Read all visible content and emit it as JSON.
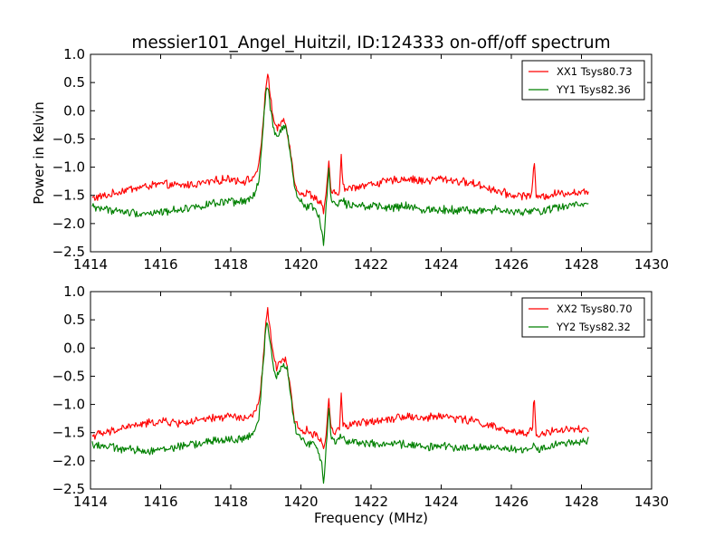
{
  "chart_data": [
    {
      "type": "line",
      "title": "messier101_Angel_Huitzil, ID:124333 on-off/off spectrum",
      "xlabel": "",
      "ylabel": "Power in Kelvin",
      "xlim": [
        1414,
        1430
      ],
      "ylim": [
        -2.5,
        1.0
      ],
      "xticks": [
        "1414",
        "1416",
        "1418",
        "1420",
        "1422",
        "1424",
        "1426",
        "1428",
        "1430"
      ],
      "yticks": [
        "1.0",
        "0.5",
        "0.0",
        "−0.5",
        "−1.0",
        "−1.5",
        "−2.0",
        "−2.5"
      ],
      "legend_position": "top-right",
      "grid": false,
      "x_range": [
        1414.05,
        1428.2
      ],
      "series": [
        {
          "name": "XX1 Tsys80.73",
          "color": "#ff0000",
          "x": [
            1414.05,
            1414.5,
            1415.0,
            1415.5,
            1416.0,
            1416.5,
            1417.0,
            1417.5,
            1418.0,
            1418.3,
            1418.6,
            1418.8,
            1418.9,
            1419.0,
            1419.05,
            1419.1,
            1419.2,
            1419.3,
            1419.4,
            1419.5,
            1419.6,
            1419.7,
            1419.8,
            1419.9,
            1420.0,
            1420.1,
            1420.2,
            1420.3,
            1420.4,
            1420.5,
            1420.6,
            1420.65,
            1420.7,
            1420.75,
            1420.8,
            1420.85,
            1420.9,
            1421.0,
            1421.1,
            1421.15,
            1421.2,
            1421.3,
            1421.5,
            1422.0,
            1422.5,
            1423.0,
            1423.5,
            1424.0,
            1424.5,
            1425.0,
            1425.5,
            1426.0,
            1426.5,
            1426.6,
            1426.65,
            1426.7,
            1426.8,
            1427.0,
            1427.5,
            1428.0,
            1428.2
          ],
          "y": [
            -1.55,
            -1.5,
            -1.4,
            -1.35,
            -1.3,
            -1.33,
            -1.3,
            -1.25,
            -1.2,
            -1.25,
            -1.22,
            -1.0,
            -0.4,
            0.45,
            0.67,
            0.4,
            -0.1,
            -0.35,
            -0.25,
            -0.15,
            -0.3,
            -0.7,
            -1.2,
            -1.4,
            -1.45,
            -1.5,
            -1.45,
            -1.5,
            -1.55,
            -1.6,
            -1.65,
            -1.8,
            -1.6,
            -1.3,
            -0.85,
            -1.4,
            -1.45,
            -1.5,
            -1.4,
            -0.8,
            -1.35,
            -1.4,
            -1.35,
            -1.3,
            -1.25,
            -1.2,
            -1.25,
            -1.2,
            -1.25,
            -1.3,
            -1.4,
            -1.5,
            -1.5,
            -1.45,
            -0.75,
            -1.5,
            -1.55,
            -1.5,
            -1.45,
            -1.45,
            -1.45
          ]
        },
        {
          "name": "YY1 Tsys82.36",
          "color": "#008000",
          "x": [
            1414.05,
            1414.5,
            1415.0,
            1415.5,
            1416.0,
            1416.5,
            1417.0,
            1417.5,
            1418.0,
            1418.3,
            1418.6,
            1418.8,
            1418.9,
            1419.0,
            1419.05,
            1419.1,
            1419.2,
            1419.3,
            1419.4,
            1419.5,
            1419.6,
            1419.7,
            1419.8,
            1419.9,
            1420.0,
            1420.1,
            1420.2,
            1420.3,
            1420.4,
            1420.5,
            1420.6,
            1420.65,
            1420.7,
            1420.75,
            1420.8,
            1420.85,
            1420.9,
            1421.0,
            1421.1,
            1421.15,
            1421.2,
            1421.3,
            1421.5,
            1422.0,
            1422.5,
            1423.0,
            1423.5,
            1424.0,
            1424.5,
            1425.0,
            1425.5,
            1426.0,
            1426.5,
            1426.6,
            1426.65,
            1426.7,
            1426.8,
            1427.0,
            1427.5,
            1428.0,
            1428.2
          ],
          "y": [
            -1.7,
            -1.75,
            -1.8,
            -1.82,
            -1.8,
            -1.75,
            -1.7,
            -1.65,
            -1.62,
            -1.62,
            -1.55,
            -1.3,
            -0.5,
            0.35,
            0.45,
            0.2,
            -0.25,
            -0.5,
            -0.4,
            -0.25,
            -0.35,
            -0.8,
            -1.3,
            -1.55,
            -1.6,
            -1.65,
            -1.7,
            -1.68,
            -1.75,
            -1.85,
            -2.1,
            -2.4,
            -1.9,
            -1.45,
            -1.0,
            -1.55,
            -1.6,
            -1.65,
            -1.6,
            -1.55,
            -1.6,
            -1.65,
            -1.65,
            -1.7,
            -1.72,
            -1.7,
            -1.75,
            -1.75,
            -1.75,
            -1.78,
            -1.75,
            -1.8,
            -1.8,
            -1.78,
            -1.75,
            -1.8,
            -1.78,
            -1.75,
            -1.7,
            -1.65,
            -1.62
          ]
        }
      ]
    },
    {
      "type": "line",
      "title": "",
      "xlabel": "Frequency (MHz)",
      "ylabel": "",
      "xlim": [
        1414,
        1430
      ],
      "ylim": [
        -2.5,
        1.0
      ],
      "xticks": [
        "1414",
        "1416",
        "1418",
        "1420",
        "1422",
        "1424",
        "1426",
        "1428",
        "1430"
      ],
      "yticks": [
        "1.0",
        "0.5",
        "0.0",
        "−0.5",
        "−1.0",
        "−1.5",
        "−2.0",
        "−2.5"
      ],
      "legend_position": "top-right",
      "grid": false,
      "x_range": [
        1414.05,
        1428.2
      ],
      "series": [
        {
          "name": "XX2 Tsys80.70",
          "color": "#ff0000",
          "x": [
            1414.05,
            1414.5,
            1415.0,
            1415.5,
            1416.0,
            1416.5,
            1417.0,
            1417.5,
            1418.0,
            1418.3,
            1418.6,
            1418.8,
            1418.9,
            1419.0,
            1419.05,
            1419.1,
            1419.2,
            1419.3,
            1419.4,
            1419.5,
            1419.6,
            1419.7,
            1419.8,
            1419.9,
            1420.0,
            1420.1,
            1420.2,
            1420.3,
            1420.4,
            1420.5,
            1420.6,
            1420.65,
            1420.7,
            1420.75,
            1420.8,
            1420.85,
            1420.9,
            1421.0,
            1421.1,
            1421.15,
            1421.2,
            1421.3,
            1421.5,
            1422.0,
            1422.5,
            1423.0,
            1423.5,
            1424.0,
            1424.5,
            1425.0,
            1425.5,
            1426.0,
            1426.5,
            1426.6,
            1426.65,
            1426.7,
            1426.8,
            1427.0,
            1427.5,
            1428.0,
            1428.2
          ],
          "y": [
            -1.55,
            -1.5,
            -1.4,
            -1.35,
            -1.3,
            -1.33,
            -1.3,
            -1.25,
            -1.2,
            -1.25,
            -1.22,
            -1.0,
            -0.4,
            0.45,
            0.67,
            0.4,
            -0.1,
            -0.35,
            -0.25,
            -0.15,
            -0.3,
            -0.7,
            -1.2,
            -1.4,
            -1.45,
            -1.5,
            -1.45,
            -1.5,
            -1.55,
            -1.6,
            -1.65,
            -1.8,
            -1.6,
            -1.3,
            -0.85,
            -1.4,
            -1.45,
            -1.5,
            -1.4,
            -0.8,
            -1.35,
            -1.4,
            -1.35,
            -1.3,
            -1.25,
            -1.2,
            -1.25,
            -1.2,
            -1.25,
            -1.3,
            -1.4,
            -1.5,
            -1.5,
            -1.45,
            -0.75,
            -1.5,
            -1.55,
            -1.5,
            -1.45,
            -1.45,
            -1.45
          ]
        },
        {
          "name": "YY2 Tsys82.32",
          "color": "#008000",
          "x": [
            1414.05,
            1414.5,
            1415.0,
            1415.5,
            1416.0,
            1416.5,
            1417.0,
            1417.5,
            1418.0,
            1418.3,
            1418.6,
            1418.8,
            1418.9,
            1419.0,
            1419.05,
            1419.1,
            1419.2,
            1419.3,
            1419.4,
            1419.5,
            1419.6,
            1419.7,
            1419.8,
            1419.9,
            1420.0,
            1420.1,
            1420.2,
            1420.3,
            1420.4,
            1420.5,
            1420.6,
            1420.65,
            1420.7,
            1420.75,
            1420.8,
            1420.85,
            1420.9,
            1421.0,
            1421.1,
            1421.15,
            1421.2,
            1421.3,
            1421.5,
            1422.0,
            1422.5,
            1423.0,
            1423.5,
            1424.0,
            1424.5,
            1425.0,
            1425.5,
            1426.0,
            1426.5,
            1426.6,
            1426.65,
            1426.7,
            1426.8,
            1427.0,
            1427.5,
            1428.0,
            1428.2
          ],
          "y": [
            -1.7,
            -1.75,
            -1.8,
            -1.82,
            -1.8,
            -1.75,
            -1.7,
            -1.65,
            -1.62,
            -1.62,
            -1.55,
            -1.3,
            -0.5,
            0.35,
            0.45,
            0.2,
            -0.25,
            -0.5,
            -0.4,
            -0.25,
            -0.35,
            -0.8,
            -1.3,
            -1.55,
            -1.6,
            -1.65,
            -1.7,
            -1.68,
            -1.75,
            -1.85,
            -2.1,
            -2.4,
            -1.9,
            -1.45,
            -1.0,
            -1.55,
            -1.6,
            -1.65,
            -1.6,
            -1.55,
            -1.6,
            -1.65,
            -1.65,
            -1.7,
            -1.72,
            -1.7,
            -1.75,
            -1.75,
            -1.75,
            -1.78,
            -1.75,
            -1.8,
            -1.8,
            -1.78,
            -1.75,
            -1.8,
            -1.78,
            -1.75,
            -1.7,
            -1.65,
            -1.62
          ]
        }
      ]
    }
  ]
}
